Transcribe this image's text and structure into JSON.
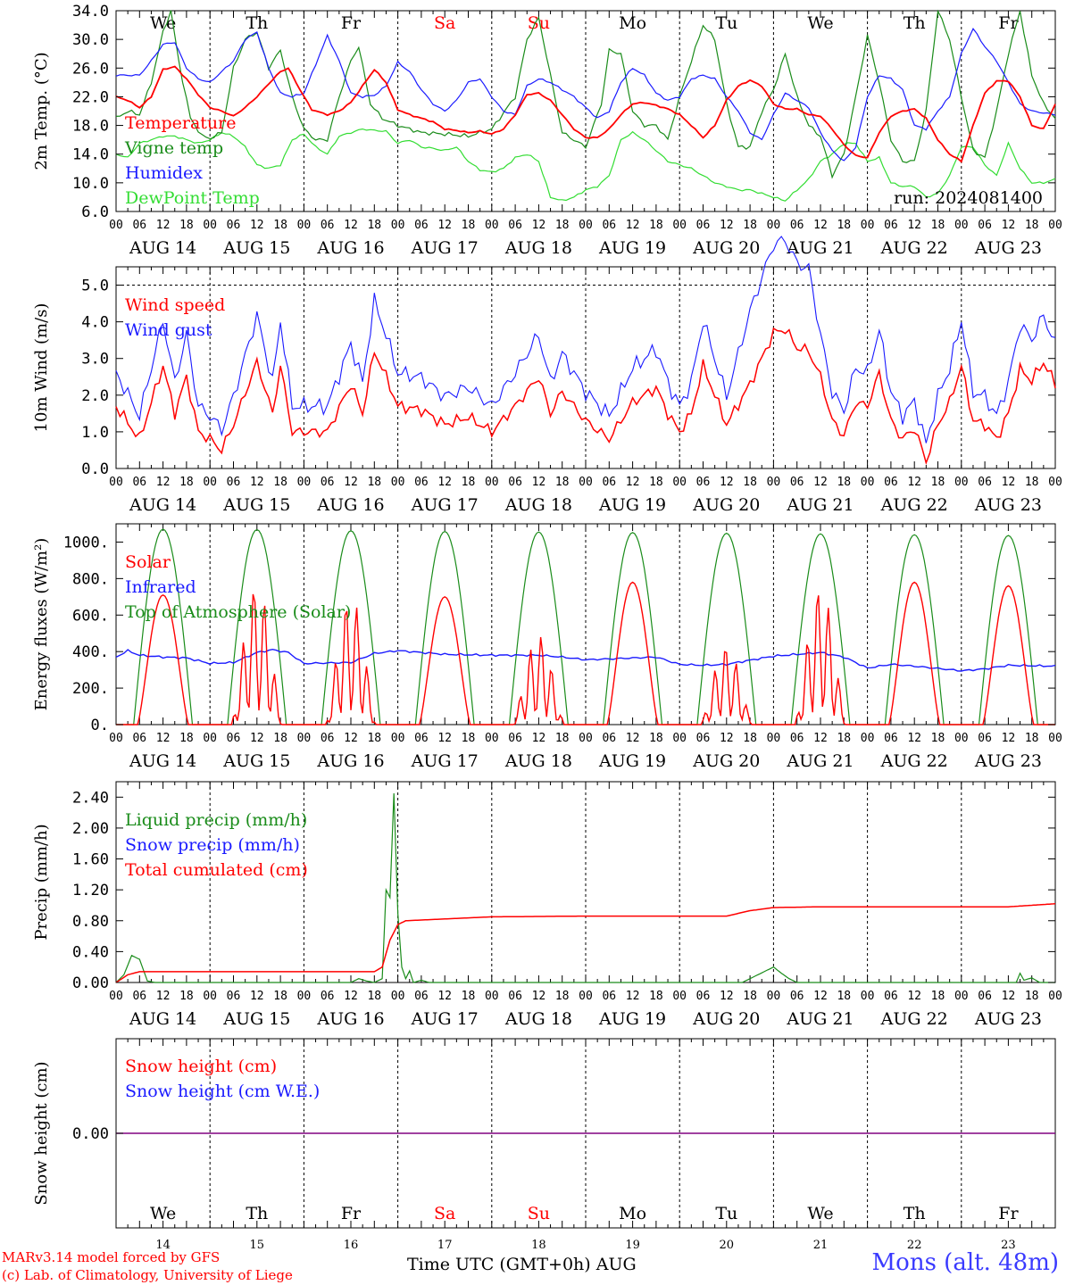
{
  "footer": {
    "credit_line1": "MARv3.14 model forced by GFS",
    "credit_line2": "(c) Lab. of Climatology, University of Liege",
    "time_label": "Time UTC (GMT+0h) AUG",
    "location": "Mons (alt. 48m)"
  },
  "colors": {
    "red": "#ff0000",
    "green": "#1a8c1a",
    "blue": "#1a1aff",
    "lightgreen": "#33dd33",
    "purple": "#800080"
  },
  "chart_data": [
    {
      "type": "line",
      "ylabel": "2m Temp. (°C)",
      "ylim": [
        6,
        34
      ],
      "yticks": [
        "6.0",
        "10.0",
        "14.0",
        "18.0",
        "22.0",
        "26.0",
        "30.0",
        "34.0"
      ],
      "weekday_labels": [
        "We",
        "Th",
        "Fr",
        "Sa",
        "Su",
        "Mo",
        "Tu",
        "We",
        "Th",
        "Fr"
      ],
      "annotation": "run: 2024081400",
      "x_unit": "hours since AUG 14 00 UTC",
      "series": [
        {
          "name": "Temperature",
          "color": "#ff0000",
          "x": [
            0,
            6,
            12,
            18,
            24,
            30,
            36,
            42,
            48,
            54,
            60,
            66,
            72,
            78,
            84,
            90,
            96,
            102,
            108,
            114,
            120,
            126,
            132,
            138,
            144,
            150,
            156,
            162,
            168,
            174,
            180,
            186,
            192,
            198,
            204,
            210,
            216,
            222,
            228,
            234,
            238
          ],
          "y": [
            22,
            20,
            26.2,
            23,
            20,
            19.2,
            24,
            26,
            20,
            19.2,
            21,
            26,
            20,
            18.5,
            17.5,
            17,
            17.5,
            22.5,
            21,
            16.5,
            16.3,
            20,
            21.2,
            20.6,
            18.5,
            16,
            22.5,
            24.3,
            21,
            20,
            18.5,
            20.3,
            19.5,
            15,
            13.5,
            19,
            20.5,
            17,
            13,
            20.8,
            24
          ],
          "y2_tail": [
            23.6,
            18,
            17.5,
            22,
            27.3,
            28.3,
            25,
            21
          ]
        },
        {
          "name": "Vigne temp",
          "color": "#1a8c1a"
        },
        {
          "name": "Humidex",
          "color": "#1a1aff"
        },
        {
          "name": "DewPoint Temp",
          "color": "#33dd33"
        }
      ]
    },
    {
      "type": "line",
      "ylabel": "10m Wind (m/s)",
      "ylim": [
        0,
        5.5
      ],
      "yticks": [
        "0.0",
        "1.0",
        "2.0",
        "3.0",
        "4.0",
        "5.0"
      ],
      "series": [
        {
          "name": "Wind speed",
          "color": "#ff0000"
        },
        {
          "name": "Wind gust",
          "color": "#1a1aff"
        }
      ]
    },
    {
      "type": "line",
      "ylabel": "Energy fluxes (W/m²)",
      "ylim": [
        0,
        1100
      ],
      "yticks": [
        "0.",
        "200.",
        "400.",
        "600.",
        "800.",
        "1000."
      ],
      "series": [
        {
          "name": "Solar",
          "color": "#ff0000",
          "daily_peak": [
            710,
            770,
            700,
            700,
            490,
            780,
            430,
            750,
            780,
            760
          ]
        },
        {
          "name": "Infrared",
          "color": "#1a1aff"
        },
        {
          "name": "Top of Atmosphere (Solar)",
          "color": "#1a8c1a",
          "daily_peak": [
            1070,
            1068,
            1062,
            1058,
            1055,
            1052,
            1048,
            1045,
            1040,
            1036
          ]
        }
      ]
    },
    {
      "type": "line",
      "ylabel": "Precip (mm/h)",
      "ylim": [
        0,
        2.6
      ],
      "yticks": [
        "0.00",
        "0.40",
        "0.80",
        "1.20",
        "1.60",
        "2.00",
        "2.40"
      ],
      "series": [
        {
          "name": "Liquid precip (mm/h)",
          "color": "#1a8c1a"
        },
        {
          "name": "Snow precip (mm/h)",
          "color": "#1a1aff"
        },
        {
          "name": "Total cumulated (cm)",
          "color": "#ff0000"
        }
      ]
    },
    {
      "type": "line",
      "ylabel": "Snow height (cm)",
      "yticks": [
        "0.00"
      ],
      "series": [
        {
          "name": "Snow height (cm)",
          "color": "#ff0000"
        },
        {
          "name": "Snow height (cm W.E.)",
          "color": "#1a1aff"
        }
      ],
      "day_numbers": [
        "14",
        "15",
        "16",
        "17",
        "18",
        "19",
        "20",
        "21",
        "22",
        "23"
      ]
    }
  ],
  "x_axis": {
    "hour_ticks": [
      "00",
      "06",
      "12",
      "18"
    ],
    "day_labels": [
      "AUG 14",
      "AUG 15",
      "AUG 16",
      "AUG 17",
      "AUG 18",
      "AUG 19",
      "AUG 20",
      "AUG 21",
      "AUG 22",
      "AUG 23"
    ],
    "weekend_days": [
      "Sa",
      "Su"
    ]
  }
}
